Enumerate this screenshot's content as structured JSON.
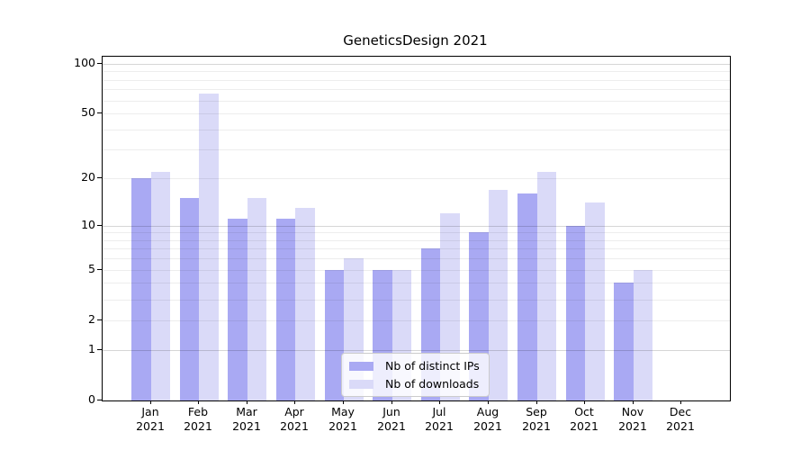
{
  "figure": {
    "title": "GeneticsDesign 2021",
    "background_color": "#ffffff"
  },
  "chart_data": {
    "type": "bar",
    "title": "GeneticsDesign 2021",
    "year": "2021",
    "categories": [
      "Jan 2021",
      "Feb 2021",
      "Mar 2021",
      "Apr 2021",
      "May 2021",
      "Jun 2021",
      "Jul 2021",
      "Aug 2021",
      "Sep 2021",
      "Oct 2021",
      "Nov 2021",
      "Dec 2021"
    ],
    "month_labels": [
      "Jan",
      "Feb",
      "Mar",
      "Apr",
      "May",
      "Jun",
      "Jul",
      "Aug",
      "Sep",
      "Oct",
      "Nov",
      "Dec"
    ],
    "series": [
      {
        "name": "Nb of distinct IPs",
        "color": "#a9a9f3",
        "values": [
          20,
          15,
          11,
          11,
          5,
          5,
          7,
          9,
          16,
          10,
          4,
          0
        ]
      },
      {
        "name": "Nb of downloads",
        "color": "#dadaf8",
        "values": [
          22,
          66,
          15,
          13,
          6,
          5,
          12,
          17,
          22,
          14,
          5,
          0
        ]
      }
    ],
    "xlabel": "",
    "ylabel": "",
    "yscale": "log1p",
    "ylim": [
      0,
      110
    ],
    "yticks": [
      0,
      1,
      2,
      5,
      10,
      20,
      50,
      100
    ],
    "gridlines_minor": [
      2,
      3,
      4,
      5,
      6,
      7,
      8,
      9,
      20,
      30,
      40,
      50,
      60,
      70,
      80,
      90
    ],
    "gridlines_major": [
      1,
      10,
      100
    ],
    "grid": true,
    "legend_position": "bottom-center",
    "bar_width_fraction": 0.8
  }
}
